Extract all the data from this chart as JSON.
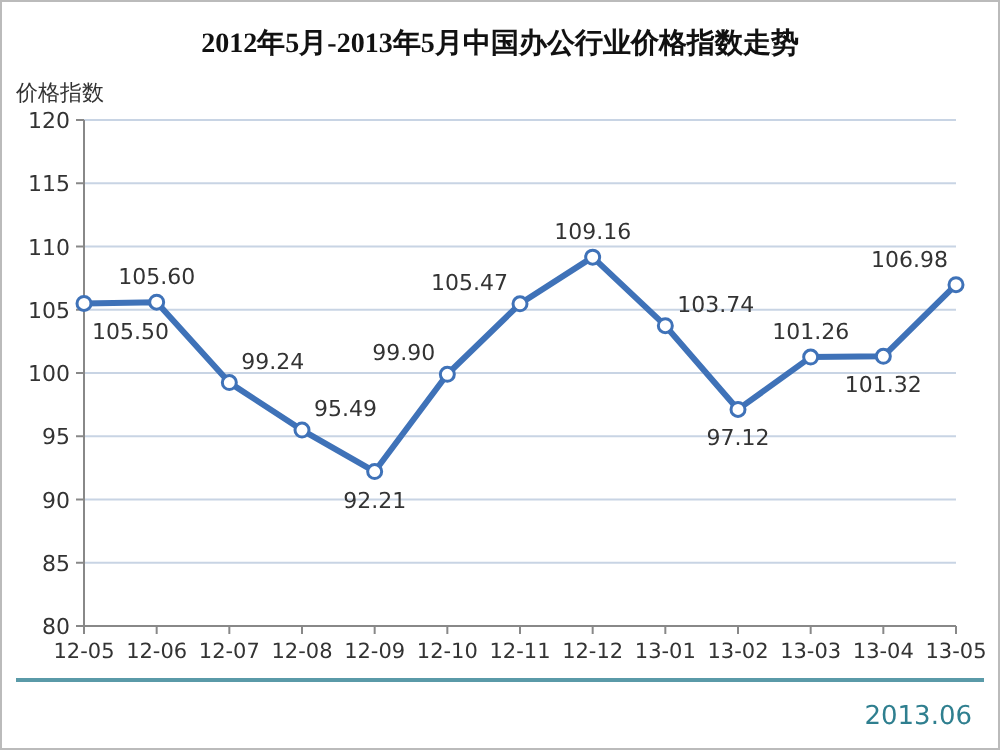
{
  "chart_data": {
    "type": "line",
    "title": "2012年5月-2013年5月中国办公行业价格指数走势",
    "ylabel": "价格指数",
    "categories": [
      "12-05",
      "12-06",
      "12-07",
      "12-08",
      "12-09",
      "12-10",
      "12-11",
      "12-12",
      "13-01",
      "13-02",
      "13-03",
      "13-04",
      "13-05"
    ],
    "series": [
      {
        "color": "#3f72b8",
        "values": [
          105.5,
          105.6,
          99.24,
          95.49,
          92.21,
          99.9,
          105.47,
          109.16,
          103.74,
          97.12,
          101.26,
          101.32,
          106.98
        ],
        "value_labels": [
          "105.50",
          "105.60",
          "99.24",
          "95.49",
          "92.21",
          "99.90",
          "105.47",
          "109.16",
          "103.74",
          "97.12",
          "101.26",
          "101.32",
          "106.98"
        ]
      }
    ],
    "ylim": [
      80,
      120
    ],
    "yticks": [
      80,
      85,
      90,
      95,
      100,
      105,
      110,
      115,
      120
    ],
    "grid": "y",
    "marker": "circle",
    "line_style": "solid",
    "annotations": [
      "2013.06"
    ]
  }
}
